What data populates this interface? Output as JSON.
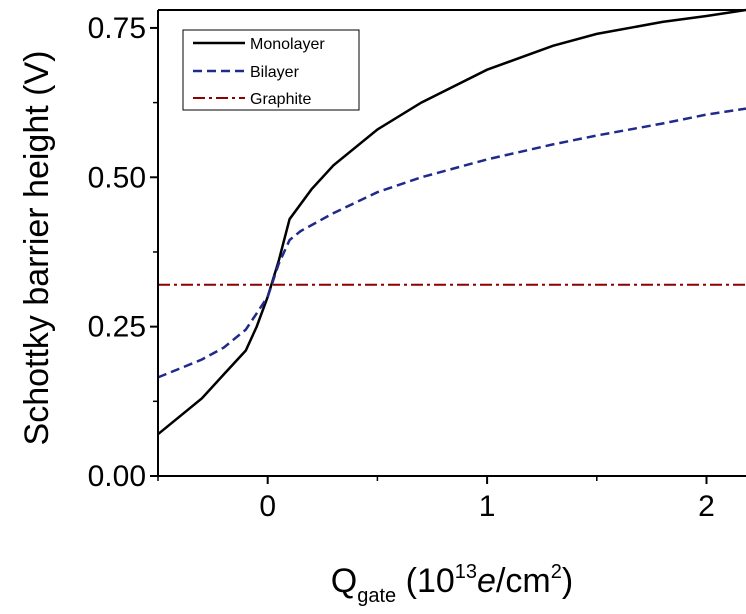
{
  "chart_data": {
    "type": "line",
    "title": "",
    "xlabel": {
      "main": "Q",
      "sub": "gate",
      "open": " (10",
      "sup": "13",
      "unit_italic": "e",
      "unit_rest": "/cm",
      "sup2": "2",
      "close": ")"
    },
    "ylabel": "Schottky barrier height (V)",
    "xlim": [
      -0.5,
      2.18
    ],
    "ylim": [
      0.0,
      0.78
    ],
    "xticks": [
      {
        "value": 0,
        "label": "0"
      },
      {
        "value": 1,
        "label": "1"
      },
      {
        "value": 2,
        "label": "2"
      }
    ],
    "yticks": [
      {
        "value": 0.0,
        "label": "0.00"
      },
      {
        "value": 0.25,
        "label": "0.25"
      },
      {
        "value": 0.5,
        "label": "0.50"
      },
      {
        "value": 0.75,
        "label": "0.75"
      }
    ],
    "grid": false,
    "legend_position": "top-left",
    "series": [
      {
        "name": "Monolayer",
        "color": "#000000",
        "style": "solid",
        "x": [
          -0.5,
          -0.4,
          -0.3,
          -0.2,
          -0.1,
          -0.05,
          0.0,
          0.05,
          0.1,
          0.2,
          0.3,
          0.5,
          0.7,
          1.0,
          1.3,
          1.5,
          1.8,
          2.0,
          2.18
        ],
        "y": [
          0.07,
          0.1,
          0.13,
          0.17,
          0.21,
          0.25,
          0.3,
          0.36,
          0.43,
          0.48,
          0.52,
          0.58,
          0.625,
          0.68,
          0.72,
          0.74,
          0.76,
          0.77,
          0.78
        ]
      },
      {
        "name": "Bilayer",
        "color": "#1f2a8a",
        "style": "dashed",
        "x": [
          -0.5,
          -0.4,
          -0.3,
          -0.2,
          -0.1,
          0.0,
          0.05,
          0.1,
          0.15,
          0.2,
          0.3,
          0.5,
          0.7,
          1.0,
          1.3,
          1.5,
          1.8,
          2.0,
          2.18
        ],
        "y": [
          0.165,
          0.18,
          0.195,
          0.215,
          0.245,
          0.3,
          0.355,
          0.395,
          0.41,
          0.42,
          0.44,
          0.475,
          0.5,
          0.53,
          0.555,
          0.57,
          0.59,
          0.605,
          0.615
        ]
      },
      {
        "name": "Graphite",
        "color": "#8b0000",
        "style": "dashdot",
        "x": [
          -0.5,
          2.18
        ],
        "y": [
          0.32,
          0.32
        ]
      }
    ]
  }
}
